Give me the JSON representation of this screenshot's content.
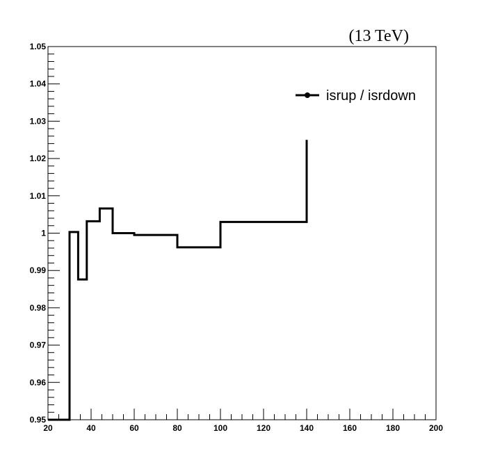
{
  "energy_label": "(13 TeV)",
  "chart_data": {
    "type": "line",
    "drawstyle": "steps",
    "xlim": [
      20,
      200
    ],
    "ylim": [
      0.95,
      1.05
    ],
    "x_ticks": [
      20,
      40,
      60,
      80,
      100,
      120,
      140,
      160,
      180,
      200
    ],
    "x_tick_labels": [
      "20",
      "40",
      "60",
      "80",
      "100",
      "120",
      "140",
      "160",
      "180",
      "200"
    ],
    "y_ticks": [
      0.95,
      0.96,
      0.97,
      0.98,
      0.99,
      1.0,
      1.01,
      1.02,
      1.03,
      1.04,
      1.05
    ],
    "y_tick_labels": [
      "0.95",
      "0.96",
      "0.97",
      "0.98",
      "0.99",
      "1",
      "1.01",
      "1.02",
      "1.03",
      "1.04",
      "1.05"
    ],
    "grid": false,
    "legend_position": "top-right",
    "series": [
      {
        "name": "isrup / isrdown",
        "color": "#000000",
        "bin_edges": [
          20,
          30,
          34,
          38,
          44,
          50,
          60,
          80,
          100,
          140
        ],
        "values": [
          0.95,
          1.0003,
          0.9876,
          1.0032,
          1.0066,
          1.0,
          0.9995,
          0.9962,
          1.003
        ],
        "last_edge_value": 1.025
      }
    ]
  }
}
